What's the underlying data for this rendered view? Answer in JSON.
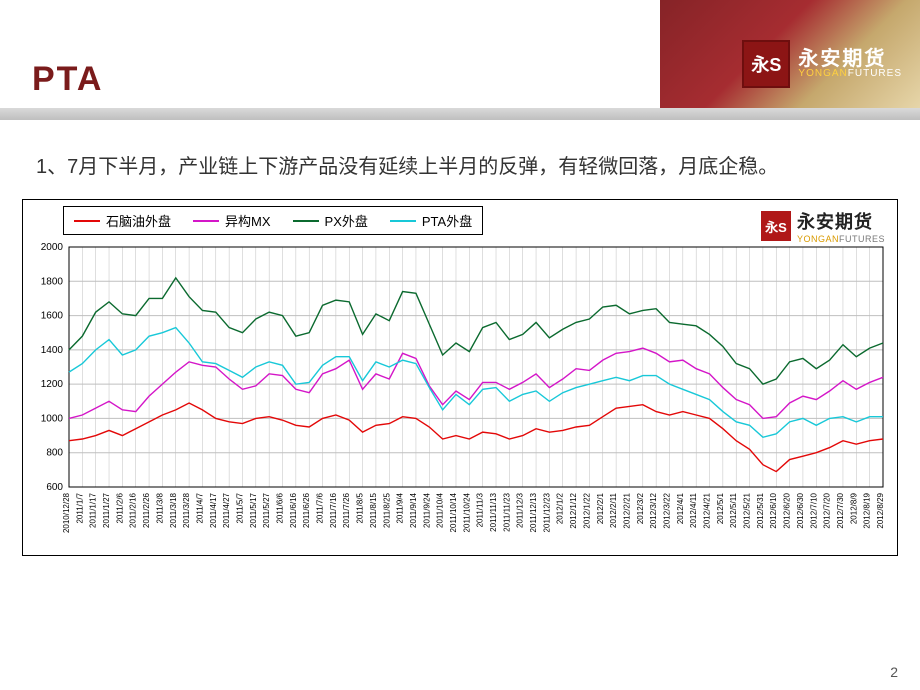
{
  "header": {
    "title": "PTA",
    "logo_badge": "永S",
    "logo_cn": "永安期货",
    "logo_en_y": "YONGAN",
    "logo_en_f": "FUTURES"
  },
  "description": "1、7月下半月，产业链上下游产品没有延续上半月的反弹，有轻微回落，月底企稳。",
  "chart": {
    "type": "line",
    "background_color": "#ffffff",
    "grid_color": "#bfbfbf",
    "axis_color": "#000000",
    "label_fontsize": 8,
    "ylim": [
      600,
      2000
    ],
    "ytick_step": 200,
    "yticks": [
      600,
      800,
      1000,
      1200,
      1400,
      1600,
      1800,
      2000
    ],
    "x_labels": [
      "2010/12/28",
      "2011/1/7",
      "2011/1/17",
      "2011/1/27",
      "2011/2/6",
      "2011/2/16",
      "2011/2/26",
      "2011/3/8",
      "2011/3/18",
      "2011/3/28",
      "2011/4/7",
      "2011/4/17",
      "2011/4/27",
      "2011/5/7",
      "2011/5/17",
      "2011/5/27",
      "2011/6/6",
      "2011/6/16",
      "2011/6/26",
      "2011/7/6",
      "2011/7/16",
      "2011/7/26",
      "2011/8/5",
      "2011/8/15",
      "2011/8/25",
      "2011/9/4",
      "2011/9/14",
      "2011/9/24",
      "2011/10/4",
      "2011/10/14",
      "2011/10/24",
      "2011/11/3",
      "2011/11/13",
      "2011/11/23",
      "2011/12/3",
      "2011/12/13",
      "2011/12/23",
      "2012/1/2",
      "2012/1/12",
      "2012/1/22",
      "2012/2/1",
      "2012/2/11",
      "2012/2/21",
      "2012/3/2",
      "2012/3/12",
      "2012/3/22",
      "2012/4/1",
      "2012/4/11",
      "2012/4/21",
      "2012/5/1",
      "2012/5/11",
      "2012/5/21",
      "2012/5/31",
      "2012/6/10",
      "2012/6/20",
      "2012/6/30",
      "2012/7/10",
      "2012/7/20",
      "2012/7/30",
      "2012/8/9",
      "2012/8/19",
      "2012/8/29"
    ],
    "series": [
      {
        "name": "石脑油外盘",
        "color": "#e30808",
        "width": 1.4,
        "values": [
          870,
          880,
          900,
          930,
          900,
          940,
          980,
          1020,
          1050,
          1090,
          1050,
          1000,
          980,
          970,
          1000,
          1010,
          990,
          960,
          950,
          1000,
          1020,
          990,
          920,
          960,
          970,
          1010,
          1000,
          950,
          880,
          900,
          880,
          920,
          910,
          880,
          900,
          940,
          920,
          930,
          950,
          960,
          1010,
          1060,
          1070,
          1080,
          1040,
          1020,
          1040,
          1020,
          1000,
          940,
          870,
          820,
          730,
          690,
          760,
          780,
          800,
          830,
          870,
          850,
          870,
          880
        ]
      },
      {
        "name": "异构MX",
        "color": "#d416c8",
        "width": 1.4,
        "values": [
          1000,
          1020,
          1060,
          1100,
          1050,
          1040,
          1130,
          1200,
          1270,
          1330,
          1310,
          1300,
          1230,
          1170,
          1190,
          1260,
          1250,
          1170,
          1150,
          1260,
          1290,
          1340,
          1170,
          1260,
          1230,
          1380,
          1350,
          1190,
          1080,
          1160,
          1110,
          1210,
          1210,
          1170,
          1210,
          1260,
          1180,
          1230,
          1290,
          1280,
          1340,
          1380,
          1390,
          1410,
          1380,
          1330,
          1340,
          1290,
          1260,
          1180,
          1110,
          1080,
          1000,
          1010,
          1090,
          1130,
          1110,
          1160,
          1220,
          1170,
          1210,
          1240
        ]
      },
      {
        "name": "PX外盘",
        "color": "#0b6a2f",
        "width": 1.4,
        "values": [
          1400,
          1480,
          1620,
          1680,
          1610,
          1600,
          1700,
          1700,
          1820,
          1710,
          1630,
          1620,
          1530,
          1500,
          1580,
          1620,
          1600,
          1480,
          1500,
          1660,
          1690,
          1680,
          1490,
          1610,
          1570,
          1740,
          1730,
          1550,
          1370,
          1440,
          1390,
          1530,
          1560,
          1460,
          1490,
          1560,
          1470,
          1520,
          1560,
          1580,
          1650,
          1660,
          1610,
          1630,
          1640,
          1560,
          1550,
          1540,
          1490,
          1420,
          1320,
          1290,
          1200,
          1230,
          1330,
          1350,
          1290,
          1340,
          1430,
          1360,
          1410,
          1440
        ]
      },
      {
        "name": "PTA外盘",
        "color": "#18c8d8",
        "width": 1.4,
        "values": [
          1270,
          1320,
          1400,
          1460,
          1370,
          1400,
          1480,
          1500,
          1530,
          1440,
          1330,
          1320,
          1280,
          1240,
          1300,
          1330,
          1310,
          1200,
          1210,
          1310,
          1360,
          1360,
          1220,
          1330,
          1300,
          1340,
          1320,
          1180,
          1050,
          1140,
          1080,
          1170,
          1180,
          1100,
          1140,
          1160,
          1100,
          1150,
          1180,
          1200,
          1220,
          1240,
          1220,
          1250,
          1250,
          1200,
          1170,
          1140,
          1110,
          1040,
          980,
          960,
          890,
          910,
          980,
          1000,
          960,
          1000,
          1010,
          980,
          1010,
          1010
        ]
      }
    ],
    "logo_badge": "永S",
    "logo_cn": "永安期货",
    "logo_en_y": "YONGAN",
    "logo_en_f": "FUTURES"
  },
  "page_number": "2"
}
